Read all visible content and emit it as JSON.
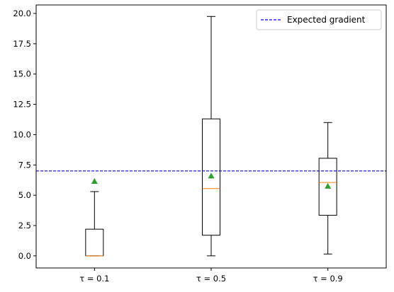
{
  "chart_data": {
    "type": "box",
    "categories": [
      "τ = 0.1",
      "τ = 0.5",
      "τ = 0.9"
    ],
    "boxes": [
      {
        "category": "τ = 0.1",
        "whisker_low": 0.0,
        "q1": 0.0,
        "median": 0.0,
        "q3": 2.2,
        "whisker_high": 5.3,
        "mean": 6.15
      },
      {
        "category": "τ = 0.5",
        "whisker_low": 0.0,
        "q1": 1.7,
        "median": 5.55,
        "q3": 11.3,
        "whisker_high": 19.75,
        "mean": 6.6
      },
      {
        "category": "τ = 0.9",
        "whisker_low": 0.15,
        "q1": 3.35,
        "median": 6.05,
        "q3": 8.05,
        "whisker_high": 11.0,
        "mean": 5.75
      }
    ],
    "reference_line": {
      "label": "Expected gradient",
      "y": 7.0,
      "style": "dashed",
      "color": "#0000ff"
    },
    "ylim": [
      -1.0,
      20.7
    ],
    "yticks": [
      0.0,
      2.5,
      5.0,
      7.5,
      10.0,
      12.5,
      15.0,
      17.5,
      20.0
    ],
    "ytick_labels": [
      "0.0",
      "2.5",
      "5.0",
      "7.5",
      "10.0",
      "12.5",
      "15.0",
      "17.5",
      "20.0"
    ],
    "legend": {
      "placement": "top-right",
      "entries": [
        "Expected gradient"
      ]
    },
    "grid": false,
    "colors": {
      "box": "#000000",
      "median": "#ff7f0e",
      "mean": "#2ca02c",
      "reference": "#0000ff"
    }
  }
}
